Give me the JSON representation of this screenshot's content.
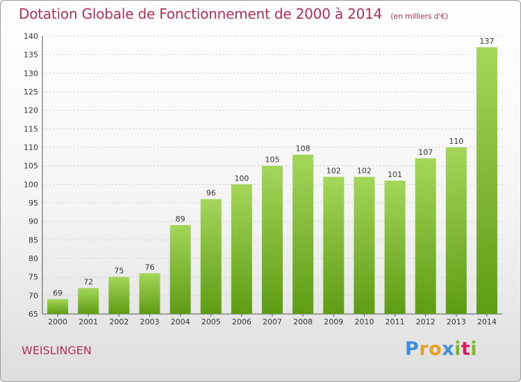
{
  "header": {
    "title": "Dotation Globale de Fonctionnement de 2000 à 2014",
    "subtitle": "(en milliers d'€)"
  },
  "footer": {
    "commune": "WEISLINGEN",
    "brand": "Proxiti",
    "brand_letter_colors": [
      "#3a8fd8",
      "#e8a020",
      "#e8a020",
      "#3a8fd8",
      "#7ab828",
      "#d02060",
      "#7ab828"
    ]
  },
  "colors": {
    "title": "#b0305a",
    "bar_light": "#a4d65a",
    "bar_dark": "#5e9c14",
    "grid": "#cccccc",
    "axis_text": "#333333"
  },
  "chart_data": {
    "type": "bar",
    "title": "Dotation Globale de Fonctionnement de 2000 à 2014",
    "subtitle": "(en milliers d'€)",
    "xlabel": "",
    "ylabel": "",
    "categories": [
      "2000",
      "2001",
      "2002",
      "2003",
      "2004",
      "2005",
      "2006",
      "2007",
      "2008",
      "2009",
      "2010",
      "2011",
      "2012",
      "2013",
      "2014"
    ],
    "values": [
      69,
      72,
      75,
      76,
      89,
      96,
      100,
      105,
      108,
      102,
      102,
      101,
      107,
      110,
      137
    ],
    "ylim": [
      65,
      140
    ],
    "yticks": [
      65,
      70,
      75,
      80,
      85,
      90,
      95,
      100,
      105,
      110,
      115,
      120,
      125,
      130,
      135,
      140
    ],
    "grid": true,
    "legend": "none",
    "data_labels": true
  }
}
